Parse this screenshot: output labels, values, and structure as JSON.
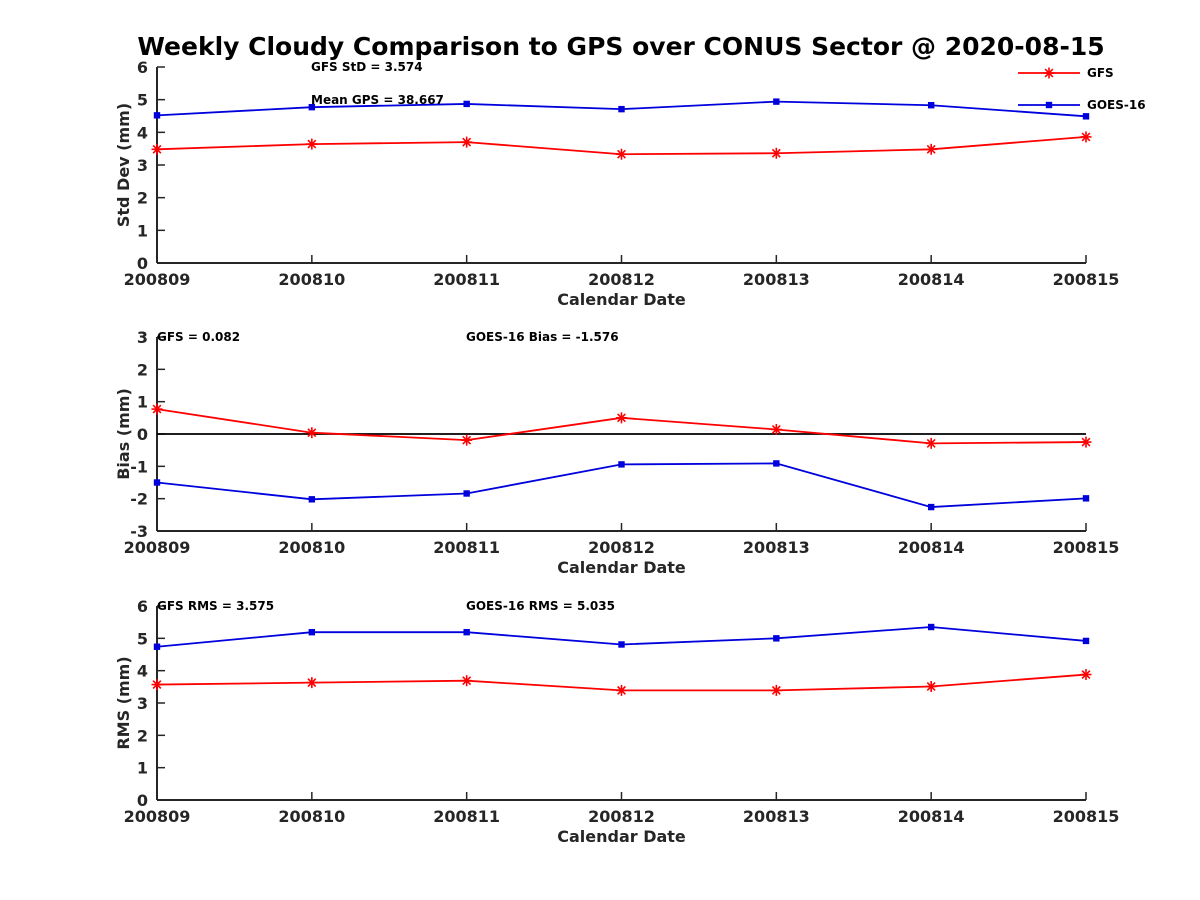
{
  "title": "Weekly Cloudy Comparison to GPS over CONUS Sector @ 2020-08-15",
  "colors": {
    "gfs": "#ff0000",
    "goes": "#0000dd",
    "zero_line": "#000000"
  },
  "legend": {
    "placement": "top-right",
    "entries": [
      "GFS",
      "GOES-16"
    ]
  },
  "chart_data": [
    {
      "type": "line",
      "categories": [
        "200809",
        "200810",
        "200811",
        "200812",
        "200813",
        "200814",
        "200815"
      ],
      "series": [
        {
          "name": "GFS",
          "marker": "asterisk",
          "values": [
            3.48,
            3.64,
            3.7,
            3.33,
            3.36,
            3.48,
            3.86
          ]
        },
        {
          "name": "GOES-16",
          "marker": "square",
          "values": [
            4.52,
            4.77,
            4.87,
            4.71,
            4.94,
            4.83,
            4.49
          ]
        }
      ],
      "xlabel": "Calendar Date",
      "ylabel": "Std Dev (mm)",
      "ylim": [
        0,
        6
      ],
      "yticks": [
        "0",
        "1",
        "2",
        "3",
        "4",
        "5",
        "6"
      ],
      "annotations": [
        "GFS StD = 3.574",
        "Mean GPS = 38.667"
      ],
      "grid": false
    },
    {
      "type": "line",
      "categories": [
        "200809",
        "200810",
        "200811",
        "200812",
        "200813",
        "200814",
        "200815"
      ],
      "series": [
        {
          "name": "GFS",
          "marker": "asterisk",
          "values": [
            0.77,
            0.04,
            -0.19,
            0.5,
            0.14,
            -0.29,
            -0.25
          ]
        },
        {
          "name": "GOES-16",
          "marker": "square",
          "values": [
            -1.5,
            -2.02,
            -1.84,
            -0.94,
            -0.91,
            -2.26,
            -1.99
          ]
        }
      ],
      "xlabel": "Calendar Date",
      "ylabel": "Bias (mm)",
      "ylim": [
        -3,
        3
      ],
      "yticks": [
        "-3",
        "-2",
        "-1",
        "0",
        "1",
        "2",
        "3"
      ],
      "reference_line": 0,
      "annotations": [
        "GFS = 0.082",
        "GOES-16 Bias  = -1.576"
      ],
      "grid": false
    },
    {
      "type": "line",
      "categories": [
        "200809",
        "200810",
        "200811",
        "200812",
        "200813",
        "200814",
        "200815"
      ],
      "series": [
        {
          "name": "GFS",
          "marker": "asterisk",
          "values": [
            3.57,
            3.63,
            3.69,
            3.39,
            3.39,
            3.51,
            3.88
          ]
        },
        {
          "name": "GOES-16",
          "marker": "square",
          "values": [
            4.74,
            5.19,
            5.19,
            4.81,
            5.0,
            5.35,
            4.92
          ]
        }
      ],
      "xlabel": "Calendar Date",
      "ylabel": "RMS (mm)",
      "ylim": [
        0,
        6
      ],
      "yticks": [
        "0",
        "1",
        "2",
        "3",
        "4",
        "5",
        "6"
      ],
      "annotations": [
        "GFS RMS = 3.575",
        "GOES-16 RMS = 5.035"
      ],
      "grid": false
    }
  ]
}
